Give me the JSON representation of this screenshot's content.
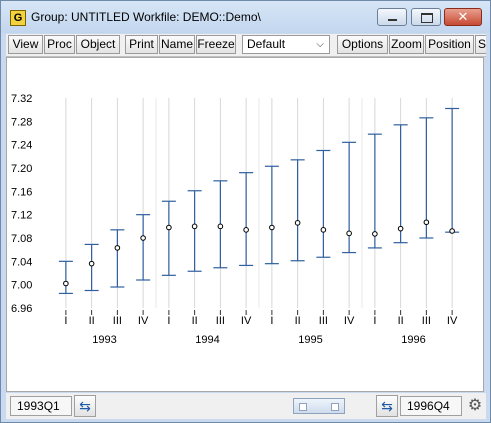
{
  "window": {
    "icon_label": "G",
    "title": "Group: UNTITLED   Workfile: DEMO::Demo\\",
    "close_glyph": "✕"
  },
  "toolbar": {
    "view": "View",
    "proc": "Proc",
    "object": "Object",
    "print": "Print",
    "name": "Name",
    "freeze": "Freeze",
    "template_value": "Default",
    "options": "Options",
    "zoom": "Zoom",
    "position": "Position",
    "overflow": "S"
  },
  "status": {
    "start": "1993Q1",
    "end": "1996Q4"
  },
  "icons": {
    "app": "group-icon",
    "swap": "swap-arrows-icon",
    "settings": "gear-icon"
  },
  "chart_data": {
    "type": "high-low",
    "title": "",
    "xlabel": "",
    "ylabel": "",
    "ylim": [
      6.96,
      7.32
    ],
    "yticks": [
      "6.96",
      "7.00",
      "7.04",
      "7.08",
      "7.12",
      "7.16",
      "7.20",
      "7.24",
      "7.28",
      "7.32"
    ],
    "quarter_labels": [
      "I",
      "II",
      "III",
      "IV",
      "I",
      "II",
      "III",
      "IV",
      "I",
      "II",
      "III",
      "IV",
      "I",
      "II",
      "III",
      "IV"
    ],
    "year_labels": [
      "1993",
      "1994",
      "1995",
      "1996"
    ],
    "grid": "vertical",
    "colors": {
      "whisker": "#2f5f9e",
      "point": "#000000",
      "grid": "#d8d8d8"
    },
    "high": [
      7.04,
      7.069,
      7.094,
      7.12,
      7.143,
      7.161,
      7.178,
      7.192,
      7.203,
      7.214,
      7.23,
      7.244,
      7.258,
      7.274,
      7.286,
      7.302
    ],
    "low": [
      6.985,
      6.99,
      6.996,
      7.008,
      7.016,
      7.023,
      7.029,
      7.033,
      7.036,
      7.041,
      7.047,
      7.055,
      7.063,
      7.072,
      7.08,
      7.09
    ],
    "close": [
      7.002,
      7.036,
      7.063,
      7.08,
      7.098,
      7.1,
      7.1,
      7.094,
      7.098,
      7.106,
      7.094,
      7.088,
      7.087,
      7.096,
      7.107,
      7.092
    ]
  }
}
